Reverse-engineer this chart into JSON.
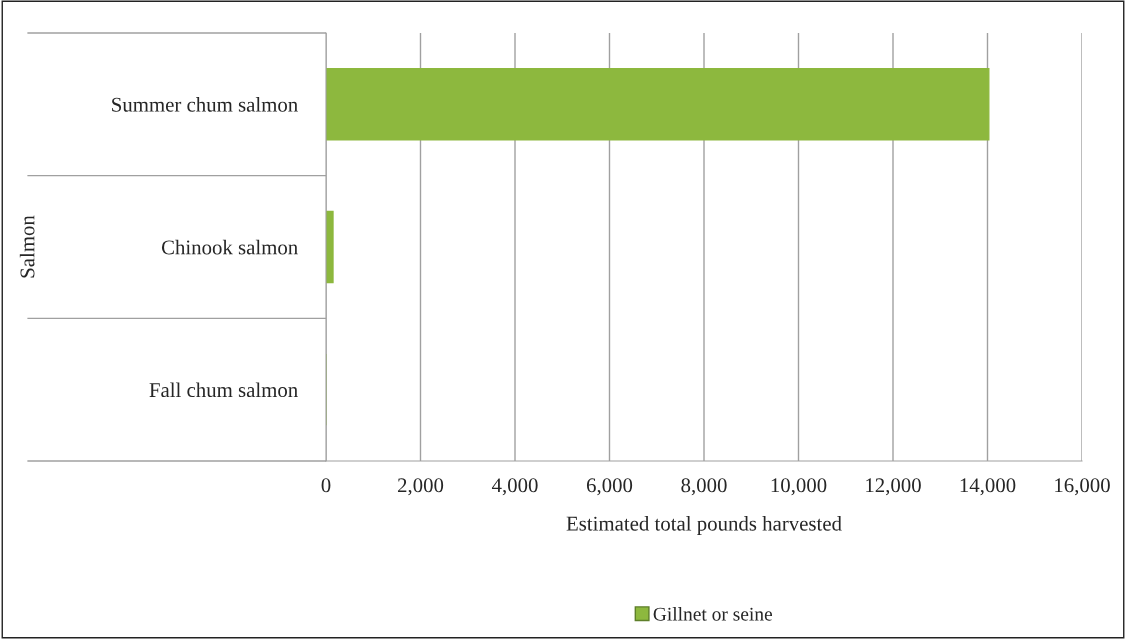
{
  "chart_data": {
    "type": "bar",
    "orientation": "horizontal",
    "categories": [
      "Summer chum salmon",
      "Chinook salmon",
      "Fall chum salmon"
    ],
    "series": [
      {
        "name": "Gillnet or seine",
        "color": "#8db83e",
        "values": [
          14030,
          150,
          0
        ]
      }
    ],
    "xlabel": "Estimated total pounds harvested",
    "ylabel": "Salmon",
    "xlim": [
      0,
      16000
    ],
    "xticks": [
      {
        "value": 0,
        "label": "0"
      },
      {
        "value": 2000,
        "label": "2,000"
      },
      {
        "value": 4000,
        "label": "4,000"
      },
      {
        "value": 6000,
        "label": "6,000"
      },
      {
        "value": 8000,
        "label": "8,000"
      },
      {
        "value": 10000,
        "label": "10,000"
      },
      {
        "value": 12000,
        "label": "12,000"
      },
      {
        "value": 14000,
        "label": "14,000"
      },
      {
        "value": 16000,
        "label": "16,000"
      }
    ],
    "grid": "x",
    "legend": "bottom"
  }
}
